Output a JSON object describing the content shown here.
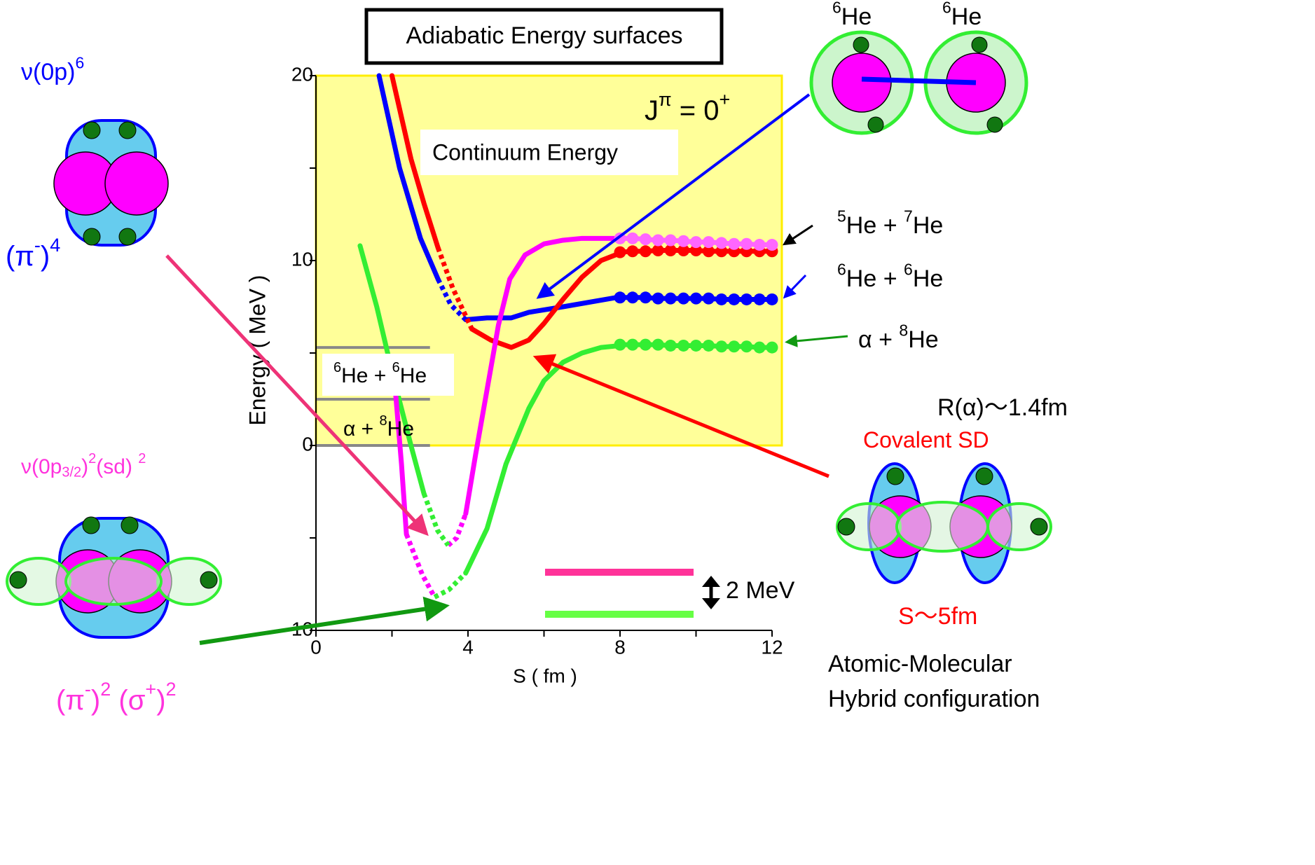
{
  "chart_data": {
    "type": "line",
    "title": "Adiabatic Energy surfaces",
    "xlabel": "S ( fm )",
    "ylabel": "Energy ( MeV )",
    "xlim": [
      0,
      12
    ],
    "ylim": [
      -10,
      20
    ],
    "xticks": [
      0,
      4,
      8,
      12
    ],
    "yticks": [
      -10,
      0,
      10,
      20
    ],
    "xminor": [
      2,
      6,
      10
    ],
    "yminor": [
      -5,
      5,
      15
    ],
    "continuum": {
      "label": "Continuum Energy",
      "color": "#ffff99"
    },
    "thresholds": {
      "values": [
        5.3,
        2.5,
        0
      ],
      "xlim": [
        0,
        3
      ],
      "color": "#888888"
    },
    "series": [
      {
        "color": "#0000ff",
        "style": "solid",
        "x": [
          1.66,
          2.2,
          2.75,
          3.21
        ],
        "y": [
          20,
          15,
          11.2,
          9.0
        ]
      },
      {
        "color": "#0000ff",
        "style": "dotted",
        "x": [
          3.21,
          3.55,
          3.94
        ],
        "y": [
          9.0,
          7.6,
          6.8
        ]
      },
      {
        "color": "#0000ff",
        "style": "solid",
        "x": [
          3.94,
          4.5,
          5.14,
          5.6,
          6.5,
          7.9
        ],
        "y": [
          6.8,
          6.9,
          6.9,
          7.2,
          7.5,
          8.0
        ]
      },
      {
        "color": "#0000ff",
        "style": "markers",
        "x": [
          8,
          8.33,
          8.67,
          9,
          9.33,
          9.67,
          10,
          10.33,
          10.67,
          11,
          11.33,
          11.67,
          12
        ],
        "y": [
          8.0,
          8.0,
          8.0,
          7.95,
          7.95,
          7.95,
          7.95,
          7.95,
          7.9,
          7.9,
          7.9,
          7.9,
          7.9
        ]
      },
      {
        "color": "#ff0000",
        "style": "solid",
        "x": [
          2.0,
          2.5,
          2.84,
          3.21
        ],
        "y": [
          20,
          15.5,
          13.1,
          10.7
        ]
      },
      {
        "color": "#ff0000",
        "style": "dotted",
        "x": [
          3.21,
          3.6,
          4.1
        ],
        "y": [
          10.7,
          8.5,
          6.3
        ]
      },
      {
        "color": "#ff0000",
        "style": "solid",
        "x": [
          4.1,
          4.6,
          5.14,
          5.6,
          6.0,
          6.5,
          7.0,
          7.5,
          8.0
        ],
        "y": [
          6.3,
          5.7,
          5.3,
          5.7,
          6.6,
          7.9,
          9.1,
          10.0,
          10.4
        ]
      },
      {
        "color": "#ff0000",
        "style": "markers",
        "x": [
          8,
          8.33,
          8.67,
          9,
          9.33,
          9.67,
          10,
          10.33,
          10.67,
          11,
          11.33,
          11.67,
          12
        ],
        "y": [
          10.45,
          10.5,
          10.5,
          10.55,
          10.55,
          10.55,
          10.55,
          10.5,
          10.5,
          10.5,
          10.5,
          10.5,
          10.5
        ]
      },
      {
        "color": "#ff00ff",
        "style": "dotted",
        "x": [
          3.48,
          3.7,
          3.94
        ],
        "y": [
          -5.4,
          -5.0,
          -3.7
        ]
      },
      {
        "color": "#ff00ff",
        "style": "solid",
        "x": [
          3.94,
          4.2,
          4.5,
          4.8,
          5.1,
          5.5,
          6.0,
          6.5,
          7.0,
          8.0
        ],
        "y": [
          -3.7,
          -0.5,
          3.0,
          6.5,
          9.0,
          10.3,
          10.9,
          11.1,
          11.2,
          11.2
        ]
      },
      {
        "color": "#ff66ff",
        "style": "markers",
        "x": [
          8,
          8.33,
          8.67,
          9,
          9.33,
          9.67,
          10,
          10.33,
          10.67,
          11,
          11.33,
          11.67,
          12
        ],
        "y": [
          11.2,
          11.2,
          11.15,
          11.1,
          11.1,
          11.05,
          11.0,
          11.0,
          10.95,
          10.9,
          10.9,
          10.85,
          10.85
        ]
      },
      {
        "color": "#33ee33",
        "style": "solid",
        "x": [
          1.16,
          1.6,
          2.0,
          2.5,
          2.84
        ],
        "y": [
          10.8,
          7.5,
          4.0,
          0.0,
          -2.6
        ]
      },
      {
        "color": "#33ee33",
        "style": "dotted",
        "x": [
          2.84,
          3.2,
          3.48
        ],
        "y": [
          -2.6,
          -4.6,
          -5.4
        ]
      },
      {
        "color": "#ff00ff",
        "style": "solid",
        "x": [
          2.1,
          2.25,
          2.38
        ],
        "y": [
          2.7,
          -1.0,
          -4.8
        ]
      },
      {
        "color": "#ff00ff",
        "style": "dotted",
        "x": [
          2.38,
          2.8,
          3.12
        ],
        "y": [
          -4.8,
          -7.0,
          -8.2
        ]
      },
      {
        "color": "#33ee33",
        "style": "dotted",
        "x": [
          3.12,
          3.5,
          3.94
        ],
        "y": [
          -8.2,
          -7.8,
          -6.9
        ]
      },
      {
        "color": "#33ee33",
        "style": "solid",
        "x": [
          3.94,
          4.5,
          5.0,
          5.6,
          6.0,
          6.5,
          7.0,
          7.5,
          8.0
        ],
        "y": [
          -6.9,
          -4.5,
          -1.0,
          2.0,
          3.5,
          4.5,
          5.0,
          5.3,
          5.4
        ]
      },
      {
        "color": "#33ee33",
        "style": "markers",
        "x": [
          8,
          8.33,
          8.67,
          9,
          9.33,
          9.67,
          10,
          10.33,
          10.67,
          11,
          11.33,
          11.67,
          12
        ],
        "y": [
          5.45,
          5.45,
          5.45,
          5.45,
          5.4,
          5.4,
          5.4,
          5.4,
          5.35,
          5.35,
          5.35,
          5.3,
          5.3
        ]
      }
    ],
    "annotations": {
      "jpi": [
        {
          "text": "J"
        },
        {
          "sup": "π"
        },
        {
          "text": " = 0"
        },
        {
          "sup": "+"
        }
      ],
      "ch_57": [
        {
          "sup": "5"
        },
        {
          "text": "He + "
        },
        {
          "sup": "7"
        },
        {
          "text": "He"
        }
      ],
      "ch_66": [
        {
          "sup": "6"
        },
        {
          "text": "He + "
        },
        {
          "sup": "6"
        },
        {
          "text": "He"
        }
      ],
      "ch_a8": [
        {
          "text": "α + "
        },
        {
          "sup": "8"
        },
        {
          "text": "He"
        }
      ],
      "th_66": [
        {
          "sup": "6"
        },
        {
          "text": "He + "
        },
        {
          "sup": "6"
        },
        {
          "text": "He"
        }
      ],
      "th_a8": [
        {
          "text": "α + "
        },
        {
          "sup": "8"
        },
        {
          "text": "He"
        }
      ],
      "scale": [
        {
          "text": "2 MeV"
        }
      ],
      "l_nu1": [
        {
          "text": "ν(0p)"
        },
        {
          "sup": "6"
        }
      ],
      "l_pi4": [
        {
          "text": "(π"
        },
        {
          "sup": "-"
        },
        {
          "text": ")"
        },
        {
          "sup": "4"
        }
      ],
      "l_nu2": [
        {
          "text": "ν(0p"
        },
        {
          "sub": "3/2"
        },
        {
          "text": ")"
        },
        {
          "sup": "2"
        },
        {
          "text": "(sd) "
        },
        {
          "sup": "2"
        }
      ],
      "l_pisig": [
        {
          "text": "(π"
        },
        {
          "sup": "-"
        },
        {
          "text": ")"
        },
        {
          "sup": "2"
        },
        {
          "text": " (σ"
        },
        {
          "sup": "+"
        },
        {
          "text": ")"
        },
        {
          "sup": "2"
        }
      ],
      "he6a": [
        {
          "sup": "6"
        },
        {
          "text": "He"
        }
      ],
      "he6b": [
        {
          "sup": "6"
        },
        {
          "text": "He"
        }
      ],
      "r_alpha": [
        {
          "text": "R(α)～1.4fm"
        }
      ],
      "covalent": [
        {
          "text": "Covalent SD"
        }
      ],
      "s5": [
        {
          "text": "S～5fm"
        }
      ],
      "hybrid1": [
        {
          "text": "Atomic-Molecular"
        }
      ],
      "hybrid2": [
        {
          "text": "Hybrid configuration"
        }
      ]
    }
  }
}
